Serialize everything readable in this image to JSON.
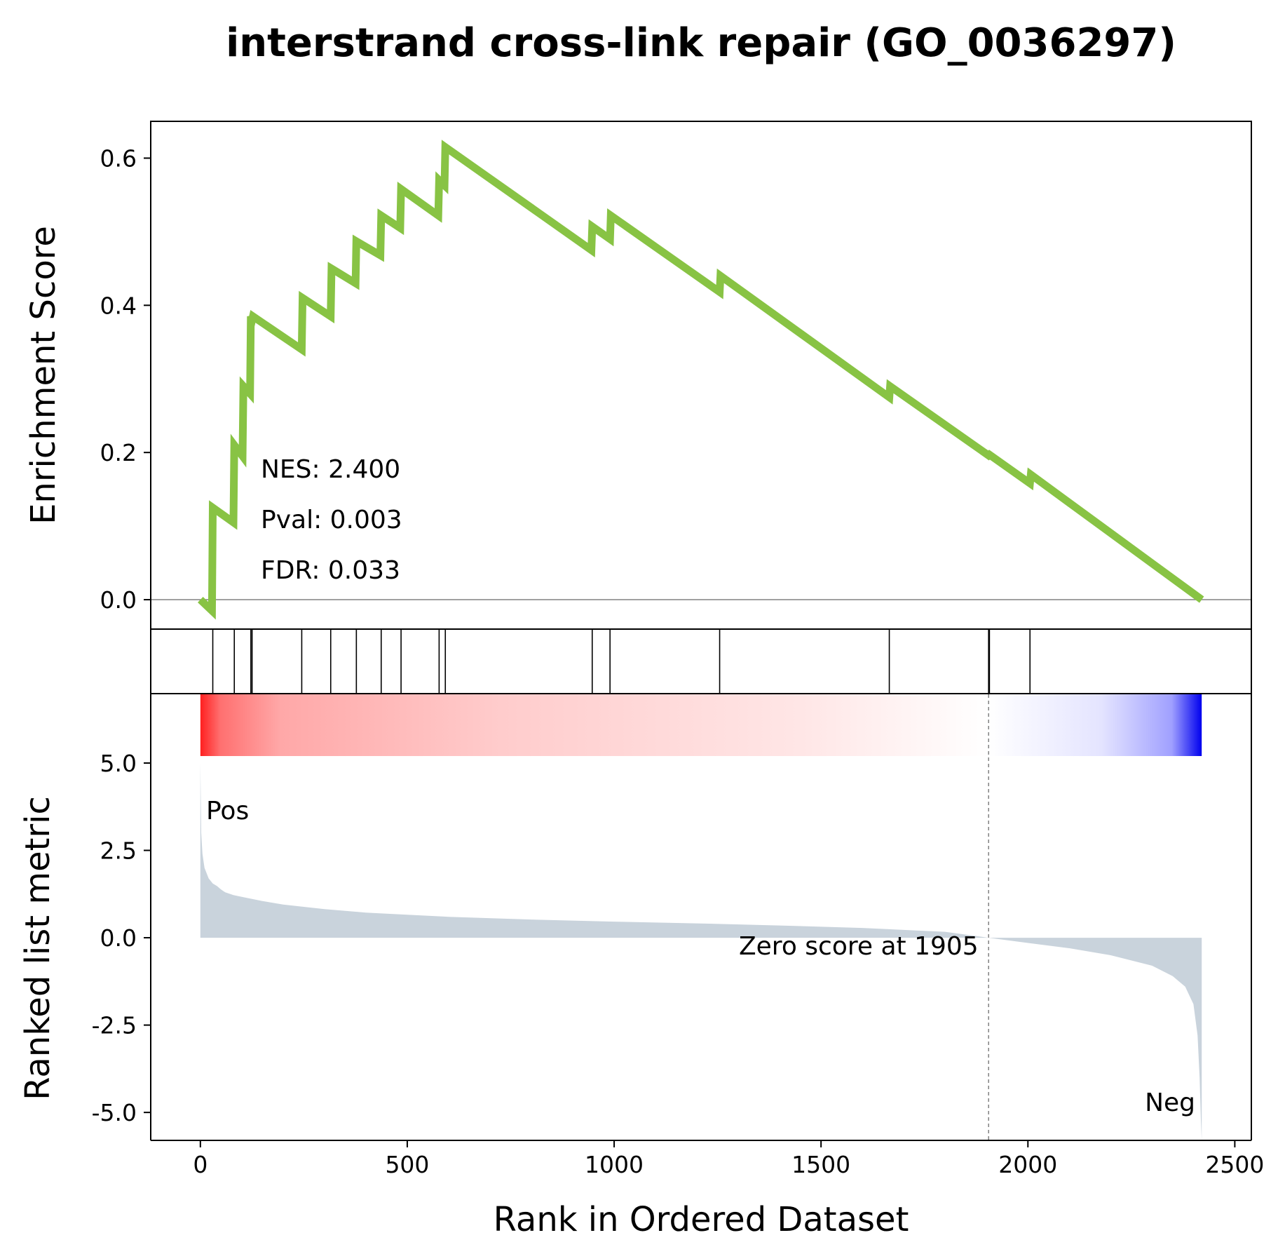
{
  "chart_data": {
    "type": "line",
    "title": "interstrand cross-link repair (GO_0036297)",
    "xlabel": "Rank in Ordered Dataset",
    "xlim": [
      -120,
      2540
    ],
    "x_ticks": [
      0,
      500,
      1000,
      1500,
      2000,
      2500
    ],
    "grid": false,
    "legend": "none",
    "colors": {
      "es_line": "#88c344",
      "metric_fill": "#c9d3dc",
      "pos_label": "#ff0000",
      "neg_label": "#0000ff",
      "zero_line": "#808080"
    },
    "enrichment_panel": {
      "ylabel": "Enrichment Score",
      "ylim": [
        -0.04,
        0.65
      ],
      "y_ticks": [
        0.0,
        0.2,
        0.4,
        0.6
      ],
      "y_tick_labels": [
        "0.0",
        "0.2",
        "0.4",
        "0.6"
      ],
      "series": [
        {
          "x": [
            0,
            28,
            30,
            80,
            82,
            102,
            104,
            120,
            122,
            125,
            127,
            245,
            247,
            315,
            317,
            375,
            377,
            435,
            437,
            483,
            485,
            575,
            577,
            590,
            592,
            945,
            947,
            990,
            992,
            1255,
            1257,
            1665,
            1667,
            1905,
            1907,
            2005,
            2007,
            2420
          ],
          "y": [
            0.0,
            -0.015,
            0.125,
            0.105,
            0.21,
            0.195,
            0.29,
            0.28,
            0.385,
            0.38,
            0.385,
            0.34,
            0.41,
            0.385,
            0.45,
            0.43,
            0.487,
            0.468,
            0.522,
            0.505,
            0.558,
            0.522,
            0.57,
            0.563,
            0.615,
            0.475,
            0.507,
            0.49,
            0.522,
            0.418,
            0.44,
            0.275,
            0.29,
            0.196,
            0.197,
            0.158,
            0.17,
            0.0
          ]
        }
      ],
      "annotations": {
        "nes": "NES: 2.400",
        "pval": "Pval: 0.003",
        "fdr": "FDR: 0.033"
      }
    },
    "hits": [
      30,
      82,
      122,
      125,
      245,
      315,
      377,
      437,
      485,
      577,
      592,
      947,
      990,
      1255,
      1665,
      1905,
      1907,
      2005
    ],
    "ranked_metric_panel": {
      "ylabel": "Ranked list metric",
      "ylim": [
        -5.8,
        5.2
      ],
      "y_ticks": [
        5.0,
        2.5,
        0.0,
        -2.5,
        -5.0
      ],
      "y_tick_labels": [
        "5.0",
        "2.5",
        "0.0",
        "-2.5",
        "-5.0"
      ],
      "series": [
        {
          "x": [
            0,
            2,
            5,
            10,
            20,
            30,
            40,
            50,
            60,
            80,
            100,
            150,
            200,
            300,
            400,
            500,
            600,
            800,
            1000,
            1200,
            1400,
            1600,
            1800,
            1905,
            2000,
            2100,
            2200,
            2300,
            2350,
            2380,
            2400,
            2410,
            2415,
            2418,
            2420
          ],
          "y": [
            5.0,
            3.0,
            2.4,
            2.0,
            1.7,
            1.55,
            1.48,
            1.38,
            1.3,
            1.22,
            1.17,
            1.05,
            0.95,
            0.82,
            0.72,
            0.66,
            0.6,
            0.52,
            0.46,
            0.41,
            0.35,
            0.28,
            0.17,
            0.0,
            -0.15,
            -0.3,
            -0.5,
            -0.8,
            -1.1,
            -1.4,
            -1.9,
            -2.8,
            -4.0,
            -5.2,
            -5.8
          ]
        }
      ],
      "zero_cross": 1905,
      "zero_label": "Zero score at 1905",
      "pos_label": "Pos",
      "neg_label": "Neg"
    },
    "heatmap_strip": {
      "x_range": [
        0,
        2420
      ],
      "stops": [
        {
          "pos": 0.0,
          "color": "#ff2020"
        },
        {
          "pos": 0.02,
          "color": "#ff7070"
        },
        {
          "pos": 0.08,
          "color": "#ffa8a8"
        },
        {
          "pos": 0.3,
          "color": "#ffcccc"
        },
        {
          "pos": 0.6,
          "color": "#ffe6e6"
        },
        {
          "pos": 0.787,
          "color": "#ffffff"
        },
        {
          "pos": 0.9,
          "color": "#e4e4ff"
        },
        {
          "pos": 0.97,
          "color": "#a0a0ff"
        },
        {
          "pos": 1.0,
          "color": "#0000ee"
        }
      ]
    }
  }
}
